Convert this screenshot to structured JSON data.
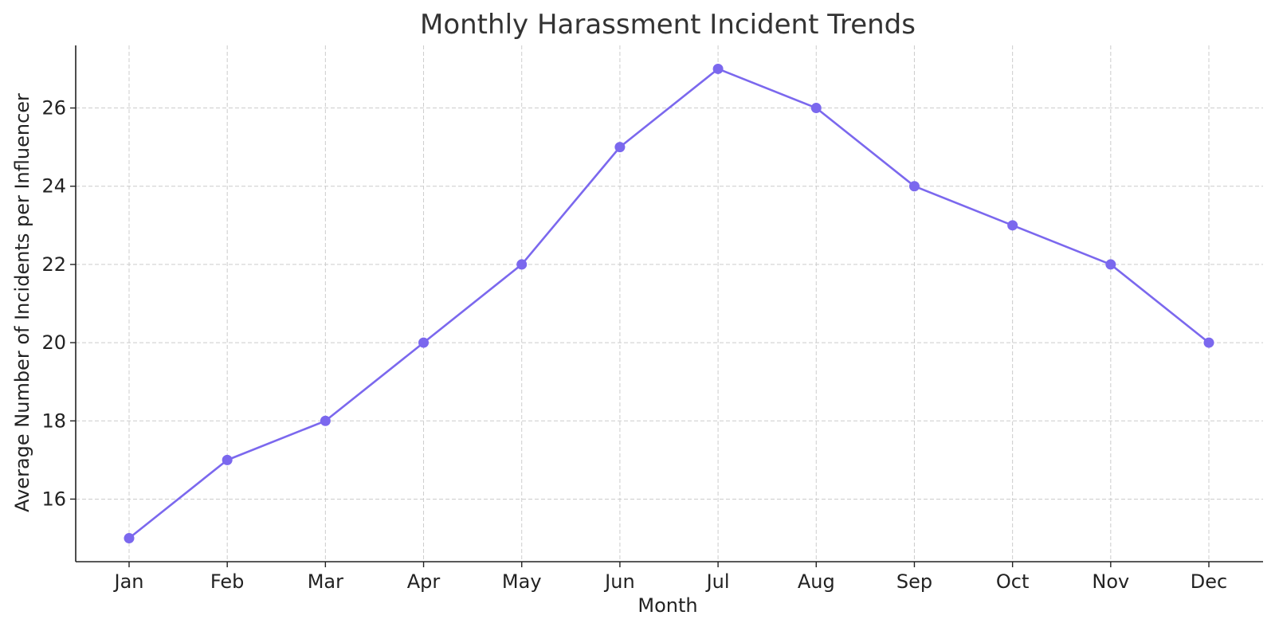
{
  "chart_data": {
    "type": "line",
    "title": "Monthly Harassment Incident Trends",
    "xlabel": "Month",
    "ylabel": "Average Number of Incidents per Influencer",
    "categories": [
      "Jan",
      "Feb",
      "Mar",
      "Apr",
      "May",
      "Jun",
      "Jul",
      "Aug",
      "Sep",
      "Oct",
      "Nov",
      "Dec"
    ],
    "series": [
      {
        "values": [
          15,
          17,
          18,
          20,
          22,
          25,
          27,
          26,
          24,
          23,
          22,
          20
        ],
        "color": "#7b68ee",
        "marker": "circle"
      }
    ],
    "yticks": [
      "16",
      "18",
      "20",
      "22",
      "24",
      "26"
    ],
    "ylim": [
      14.4,
      27.6
    ],
    "grid": true,
    "grid_style": "dashed"
  }
}
